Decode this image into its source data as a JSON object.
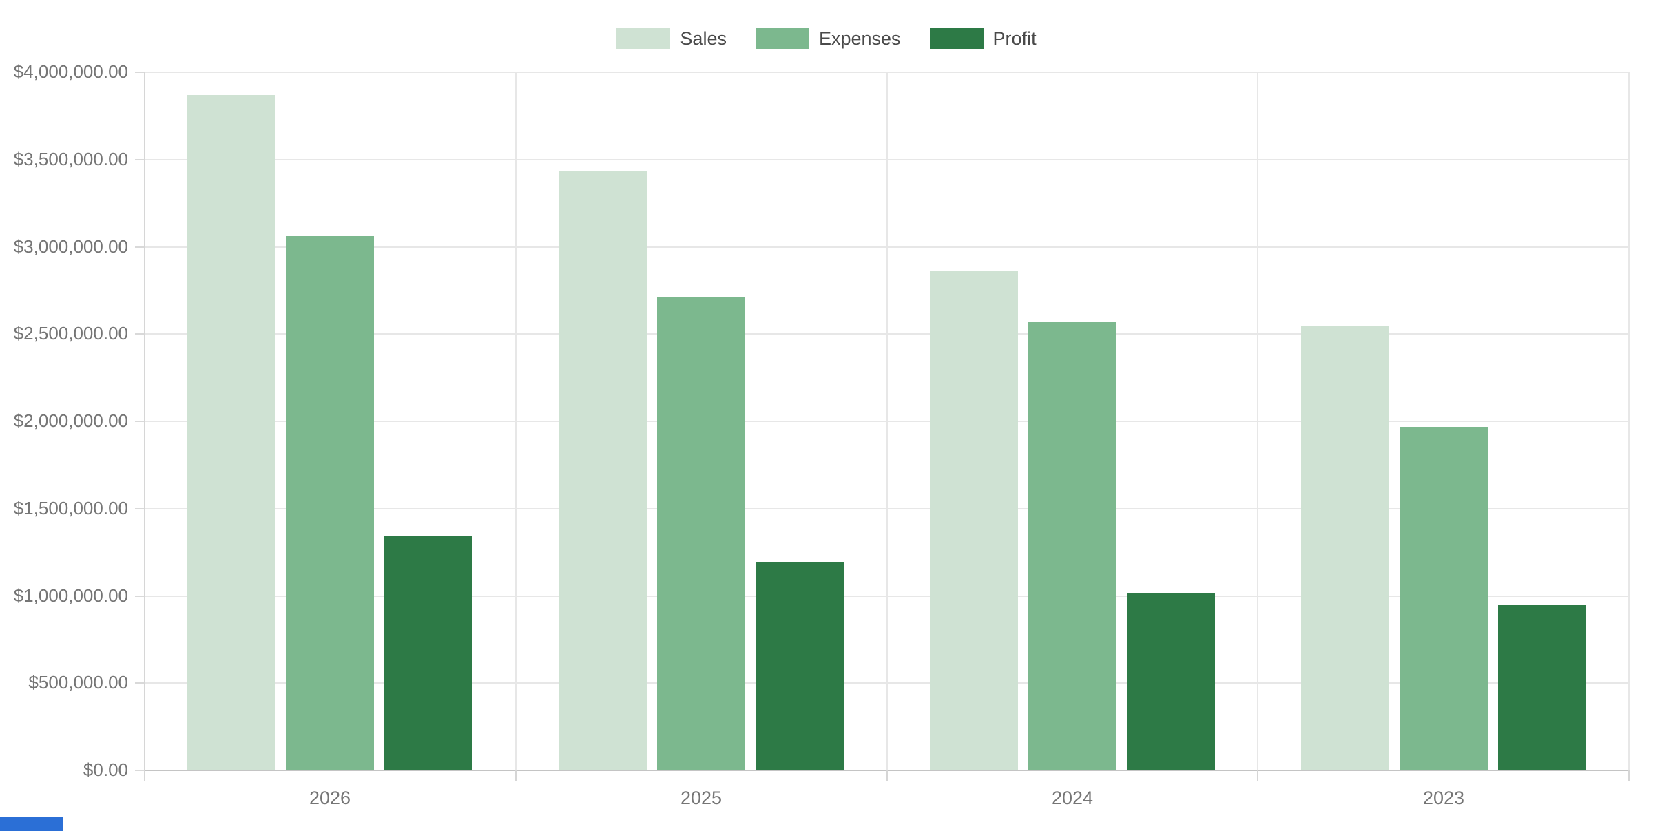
{
  "chart_data": {
    "type": "bar",
    "title": "",
    "xlabel": "",
    "ylabel": "",
    "categories": [
      "2026",
      "2025",
      "2024",
      "2023"
    ],
    "series": [
      {
        "name": "Sales",
        "color": "#cfe2d3",
        "values": [
          3870000,
          3430000,
          2860000,
          2550000
        ]
      },
      {
        "name": "Expenses",
        "color": "#7cb88e",
        "values": [
          3060000,
          2710000,
          2570000,
          1970000
        ]
      },
      {
        "name": "Profit",
        "color": "#2d7a46",
        "values": [
          1340000,
          1190000,
          1015000,
          945000
        ]
      }
    ],
    "ylim": [
      0,
      4000000
    ],
    "ytick_step": 500000,
    "ytick_labels": [
      "$0.00",
      "$500,000.00",
      "$1,000,000.00",
      "$1,500,000.00",
      "$2,000,000.00",
      "$2,500,000.00",
      "$3,000,000.00",
      "$3,500,000.00",
      "$4,000,000.00"
    ],
    "grid": true,
    "legend_position": "top",
    "currency_prefix": "$"
  },
  "colors": {
    "grid": "#e7e7e7",
    "baseline": "#c4c4c4",
    "axis": "#d6d6d6",
    "axis_text": "#757575",
    "legend_text": "#4a4a4a",
    "background": "#ffffff",
    "bottom_left_strip": "#2b6fd6"
  }
}
